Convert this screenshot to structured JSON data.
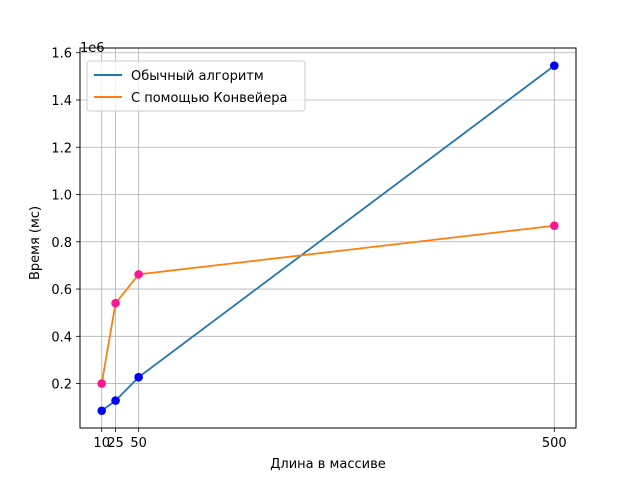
{
  "chart_data": {
    "type": "line",
    "xlabel": "Длина в массиве",
    "ylabel": "Время (мс)",
    "y_offset_label": "1e6",
    "x_ticks": [
      10,
      25,
      50,
      500
    ],
    "x_tick_labels": [
      "10",
      "25",
      "50",
      "500"
    ],
    "y_ticks": [
      0.2,
      0.4,
      0.6,
      0.8,
      1.0,
      1.2,
      1.4,
      1.6
    ],
    "y_tick_labels": [
      "0.2",
      "0.4",
      "0.6",
      "0.8",
      "1.0",
      "1.2",
      "1.4",
      "1.6"
    ],
    "xlim": [
      -13.5,
      523.5
    ],
    "ylim": [
      0.012,
      1.62
    ],
    "grid": true,
    "legend_position": "upper left",
    "series": [
      {
        "name": "Обычный алгоритм",
        "color": "#1f77b4",
        "marker_color": "#0000ff",
        "x": [
          10,
          25,
          50,
          500
        ],
        "y": [
          0.085,
          0.128,
          0.227,
          1.545
        ]
      },
      {
        "name": "С помощью Конвейера",
        "color": "#ff7f0e",
        "marker_color": "#ff1493",
        "x": [
          10,
          25,
          50,
          500
        ],
        "y": [
          0.2,
          0.54,
          0.662,
          0.868
        ]
      }
    ]
  }
}
